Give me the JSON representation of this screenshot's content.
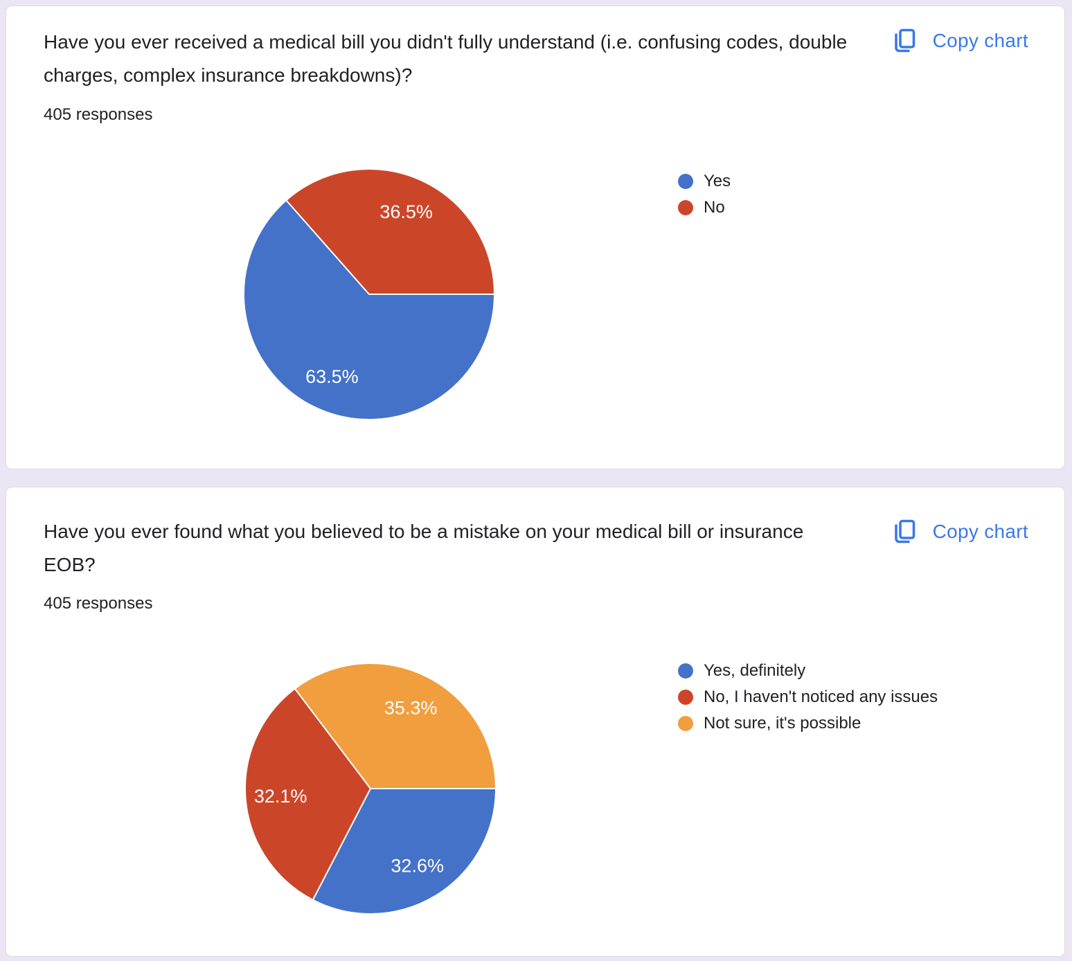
{
  "theme": {
    "page_background": "#EAE6F4",
    "card_background": "#FFFFFF",
    "card_border": "#DADCE0",
    "text_color": "#202124",
    "link_color": "#3B78E8",
    "slice_label_color": "#FFFFFF"
  },
  "cards": [
    {
      "title": "Have you ever received a medical bill you didn't fully understand (i.e. confusing codes, double charges, complex insurance breakdowns)?",
      "responses_label": "405 responses",
      "copy_button_label": "Copy chart"
    },
    {
      "title": "Have you ever found what you believed to be a mistake on your medical bill or insurance EOB?",
      "responses_label": "405 responses",
      "copy_button_label": "Copy chart"
    }
  ],
  "chart_data": [
    {
      "type": "pie",
      "title": "Have you ever received a medical bill you didn't fully understand (i.e. confusing codes, double charges, complex insurance breakdowns)?",
      "total_responses": 405,
      "labels": [
        "Yes",
        "No"
      ],
      "values": [
        63.5,
        36.5
      ],
      "value_labels": [
        "63.5%",
        "36.5%"
      ],
      "colors": [
        "#4472C8",
        "#CB4629"
      ],
      "legend_position": "right",
      "start_angle": "3-oclock",
      "direction": "clockwise"
    },
    {
      "type": "pie",
      "title": "Have you ever found what you believed to be a mistake on your medical bill or insurance EOB?",
      "total_responses": 405,
      "labels": [
        "Yes, definitely",
        "No, I haven't noticed any issues",
        "Not sure, it's possible"
      ],
      "values": [
        32.6,
        32.1,
        35.3
      ],
      "value_labels": [
        "32.6%",
        "32.1%",
        "35.3%"
      ],
      "colors": [
        "#4472C8",
        "#CB4629",
        "#F09E3E"
      ],
      "legend_position": "right",
      "start_angle": "3-oclock",
      "direction": "clockwise"
    }
  ]
}
